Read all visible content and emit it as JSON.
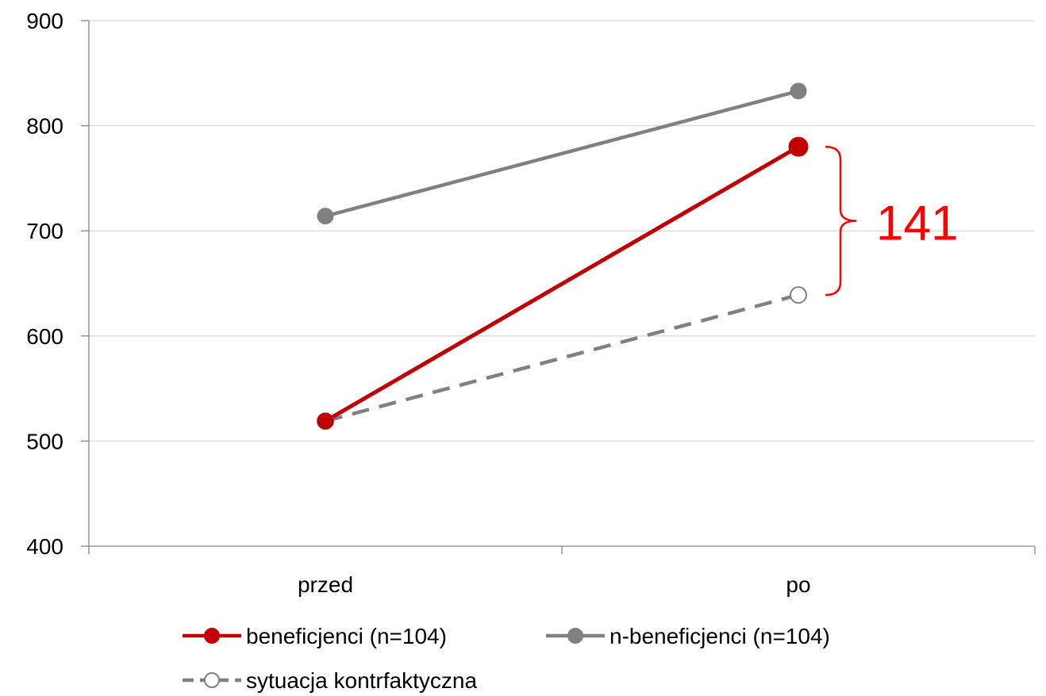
{
  "chart_data": {
    "type": "line",
    "categories": [
      "przed",
      "po"
    ],
    "ylim": [
      400,
      900
    ],
    "yticks": [
      400,
      500,
      600,
      700,
      800,
      900
    ],
    "grid": true,
    "series": [
      {
        "name": "beneficjenci (n=104)",
        "values": [
          519,
          780
        ],
        "color": "#c00000",
        "marker": "filled",
        "dash": false
      },
      {
        "name": "n-beneficjenci (n=104)",
        "values": [
          714,
          833
        ],
        "color": "#808080",
        "marker": "filled",
        "dash": false
      },
      {
        "name": "sytuacja kontrfaktyczna",
        "values": [
          519,
          639
        ],
        "color": "#808080",
        "marker": "hollow",
        "dash": true
      }
    ],
    "annotation": {
      "text": "141",
      "color": "#ff0000",
      "from": 639,
      "to": 780
    },
    "legend_position": "bottom"
  }
}
